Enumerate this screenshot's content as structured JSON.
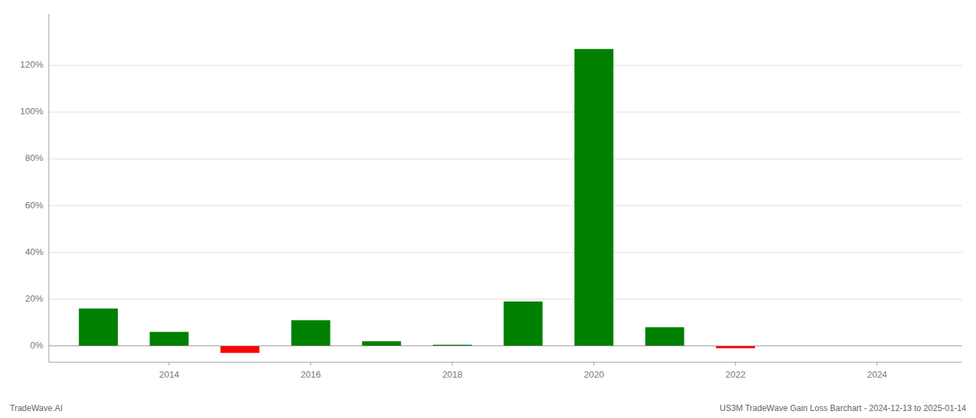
{
  "chart_data": {
    "type": "bar",
    "x": [
      2013,
      2014,
      2015,
      2016,
      2017,
      2018,
      2019,
      2020,
      2021,
      2022,
      2023
    ],
    "values": [
      0.16,
      0.06,
      -0.03,
      0.11,
      0.02,
      0.005,
      0.19,
      1.27,
      0.08,
      -0.01,
      0.0
    ],
    "colors": [
      "#008000",
      "#008000",
      "#ff0000",
      "#008000",
      "#008000",
      "#008000",
      "#008000",
      "#008000",
      "#008000",
      "#ff0000",
      "#008000"
    ],
    "xlim": [
      2012.3,
      2025.2
    ],
    "ylim": [
      -0.07,
      1.42
    ],
    "xticks": [
      2014,
      2016,
      2018,
      2020,
      2022,
      2024
    ],
    "yticks": [
      {
        "value": 0.0,
        "label": "0%"
      },
      {
        "value": 0.2,
        "label": "20%"
      },
      {
        "value": 0.4,
        "label": "40%"
      },
      {
        "value": 0.6,
        "label": "60%"
      },
      {
        "value": 0.8,
        "label": "80%"
      },
      {
        "value": 1.0,
        "label": "100%"
      },
      {
        "value": 1.2,
        "label": "120%"
      }
    ],
    "grid": true,
    "annotations": [
      "TradeWave.AI",
      "US3M TradeWave Gain Loss Barchart - 2024-12-13 to 2025-01-14"
    ]
  }
}
